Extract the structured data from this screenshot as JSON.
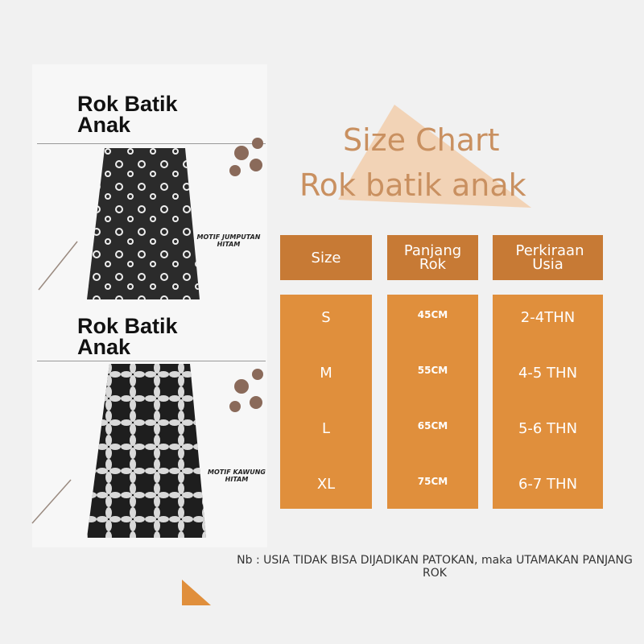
{
  "products": [
    {
      "title": "Rok Batik Anak",
      "motif": "MOTIF JUMPUTAN HITAM"
    },
    {
      "title": "Rok Batik Anak",
      "motif": "MOTIF KAWUNG HITAM"
    }
  ],
  "size_chart": {
    "title": "Size Chart",
    "subtitle": "Rok batik anak",
    "headers": [
      "Size",
      "Panjang Rok",
      "Perkiraan Usia"
    ],
    "rows": [
      [
        "S",
        "45CM",
        "2-4THN"
      ],
      [
        "M",
        "55CM",
        "4-5 THN"
      ],
      [
        "L",
        "65CM",
        "5-6 THN"
      ],
      [
        "XL",
        "75CM",
        "6-7 THN"
      ]
    ]
  },
  "note": "Nb : USIA TIDAK BISA DIJADIKAN PATOKAN, maka UTAMAKAN PANJANG ROK"
}
